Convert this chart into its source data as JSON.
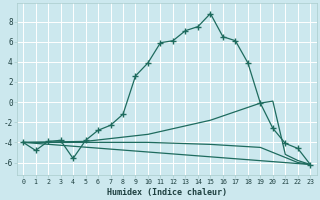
{
  "xlabel": "Humidex (Indice chaleur)",
  "background_color": "#cce8ee",
  "grid_color": "#ffffff",
  "line_color": "#1e6b5e",
  "xlim": [
    -0.5,
    23.5
  ],
  "ylim": [
    -7.2,
    9.8
  ],
  "yticks": [
    -6,
    -4,
    -2,
    0,
    2,
    4,
    6,
    8
  ],
  "xticks": [
    0,
    1,
    2,
    3,
    4,
    5,
    6,
    7,
    8,
    9,
    10,
    11,
    12,
    13,
    14,
    15,
    16,
    17,
    18,
    19,
    20,
    21,
    22,
    23
  ],
  "curve1_x": [
    0,
    1,
    2,
    3,
    4,
    5,
    6,
    7,
    8,
    9,
    10,
    11,
    12,
    13,
    14,
    15,
    16,
    17,
    18,
    19,
    20,
    21,
    22,
    23
  ],
  "curve1_y": [
    -4.0,
    -4.8,
    -3.9,
    -3.8,
    -5.6,
    -3.8,
    -2.8,
    -2.3,
    -1.2,
    2.6,
    3.9,
    5.9,
    6.1,
    7.1,
    7.5,
    8.8,
    6.5,
    6.1,
    3.9,
    -0.1,
    -2.6,
    -4.1,
    -4.6,
    -6.2
  ],
  "curve2_x": [
    0,
    5,
    10,
    15,
    19,
    20,
    21,
    22,
    23
  ],
  "curve2_y": [
    -4.0,
    -3.9,
    -3.2,
    -1.8,
    -0.1,
    0.1,
    -5.2,
    -5.8,
    -6.2
  ],
  "curve3_x": [
    0,
    5,
    10,
    15,
    19,
    20,
    21,
    22,
    23
  ],
  "curve3_y": [
    -4.0,
    -4.0,
    -4.0,
    -4.2,
    -4.5,
    -5.0,
    -5.5,
    -6.0,
    -6.2
  ],
  "curve4_x": [
    0,
    23
  ],
  "curve4_y": [
    -4.0,
    -6.2
  ]
}
